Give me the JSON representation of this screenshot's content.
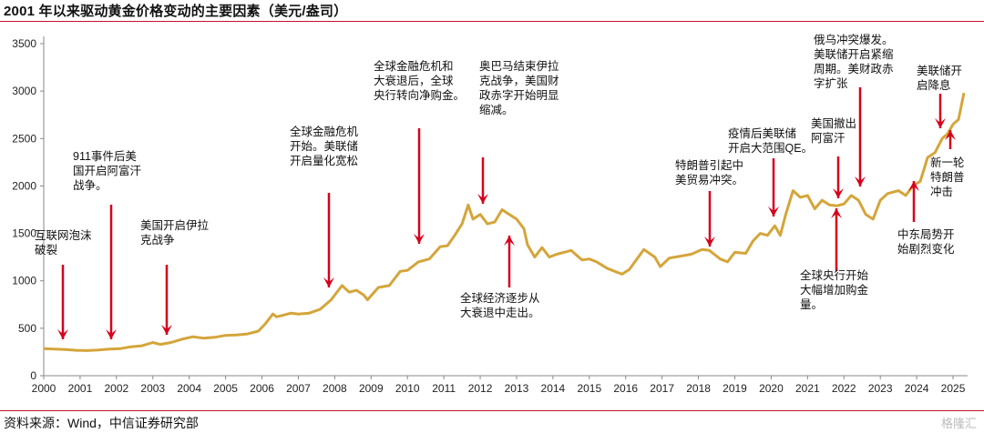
{
  "header": {
    "title": "2001 年以来驱动黄金价格变动的主要因素（美元/盎司）"
  },
  "footer": {
    "source": "资料来源：Wind，中信证券研究部",
    "watermark": "格隆汇"
  },
  "colors": {
    "line": "#d4a53a",
    "arrow": "#d6001c",
    "accent": "#c8102e",
    "axis": "#444444"
  },
  "chart_data": {
    "type": "line",
    "title": "2001 年以来驱动黄金价格变动的主要因素（美元/盎司）",
    "xlabel": "",
    "ylabel": "",
    "xlim": [
      2000,
      2025.4
    ],
    "ylim": [
      0,
      3500
    ],
    "grid": false,
    "x_ticks": [
      "2000",
      "2001",
      "2002",
      "2003",
      "2004",
      "2005",
      "2006",
      "2007",
      "2008",
      "2009",
      "2010",
      "2011",
      "2012",
      "2013",
      "2014",
      "2015",
      "2016",
      "2017",
      "2018",
      "2019",
      "2020",
      "2021",
      "2022",
      "2023",
      "2024",
      "2025"
    ],
    "y_ticks": [
      0,
      500,
      1000,
      1500,
      2000,
      2500,
      3000,
      3500
    ],
    "series": [
      {
        "x": [
          2000.0,
          2000.3,
          2000.6,
          2000.9,
          2001.2,
          2001.5,
          2001.8,
          2002.1,
          2002.4,
          2002.7,
          2003.0,
          2003.2,
          2003.5,
          2003.8,
          2004.1,
          2004.4,
          2004.7,
          2005.0,
          2005.3,
          2005.6,
          2005.9,
          2006.1,
          2006.3,
          2006.4,
          2006.6,
          2006.8,
          2007.0,
          2007.3,
          2007.6,
          2007.9,
          2008.1,
          2008.2,
          2008.4,
          2008.6,
          2008.8,
          2008.9,
          2009.2,
          2009.5,
          2009.8,
          2010.0,
          2010.3,
          2010.6,
          2010.9,
          2011.1,
          2011.3,
          2011.5,
          2011.67,
          2011.8,
          2012.0,
          2012.2,
          2012.4,
          2012.6,
          2012.8,
          2013.0,
          2013.2,
          2013.3,
          2013.5,
          2013.7,
          2013.9,
          2014.1,
          2014.3,
          2014.5,
          2014.8,
          2015.0,
          2015.2,
          2015.5,
          2015.9,
          2016.1,
          2016.5,
          2016.8,
          2016.95,
          2017.2,
          2017.5,
          2017.8,
          2018.1,
          2018.3,
          2018.6,
          2018.8,
          2019.0,
          2019.3,
          2019.5,
          2019.7,
          2019.9,
          2020.1,
          2020.25,
          2020.4,
          2020.6,
          2020.8,
          2021.0,
          2021.2,
          2021.4,
          2021.6,
          2021.8,
          2022.0,
          2022.2,
          2022.4,
          2022.6,
          2022.8,
          2023.0,
          2023.2,
          2023.5,
          2023.7,
          2023.9,
          2024.1,
          2024.3,
          2024.5,
          2024.7,
          2024.85,
          2025.0,
          2025.15,
          2025.3
        ],
        "y": [
          285,
          280,
          275,
          268,
          265,
          270,
          280,
          285,
          305,
          315,
          350,
          330,
          350,
          385,
          410,
          395,
          405,
          425,
          430,
          440,
          470,
          550,
          650,
          620,
          640,
          660,
          650,
          660,
          700,
          800,
          900,
          950,
          880,
          900,
          850,
          800,
          930,
          950,
          1100,
          1110,
          1200,
          1230,
          1360,
          1370,
          1480,
          1600,
          1800,
          1650,
          1700,
          1600,
          1620,
          1750,
          1700,
          1650,
          1550,
          1380,
          1250,
          1350,
          1250,
          1280,
          1300,
          1320,
          1220,
          1230,
          1200,
          1130,
          1070,
          1120,
          1330,
          1250,
          1150,
          1240,
          1260,
          1280,
          1330,
          1320,
          1230,
          1200,
          1300,
          1290,
          1420,
          1500,
          1480,
          1580,
          1480,
          1700,
          1950,
          1880,
          1900,
          1760,
          1850,
          1800,
          1790,
          1810,
          1900,
          1850,
          1700,
          1650,
          1850,
          1920,
          1950,
          1900,
          2000,
          2050,
          2300,
          2350,
          2500,
          2550,
          2650,
          2700,
          2980
        ]
      }
    ],
    "annotations": [
      {
        "text": [
          "互联网泡沫",
          "破裂"
        ],
        "x": 2000.3,
        "target_y": 290
      },
      {
        "text": [
          "911事件后美",
          "国开启阿富汗",
          "战争。"
        ],
        "x": 2001.67,
        "target_y": 290
      },
      {
        "text": [
          "美国开启伊拉",
          "克战争"
        ],
        "x": 2003.2,
        "target_y": 345
      },
      {
        "text": [
          "全球金融危机",
          "开始。美联储",
          "开启量化宽松"
        ],
        "x": 2007.67,
        "target_y": 680
      },
      {
        "text": [
          "全球金融危机和",
          "大衰退后，全球",
          "央行转向净购金。"
        ],
        "x": 2010.2,
        "target_y": 1190
      },
      {
        "text": [
          "奥巴马结束伊拉",
          "克战争，美国财",
          "政赤字开始明显",
          "缩减。"
        ],
        "x": 2011.9,
        "target_y": 1760
      },
      {
        "text": [
          "全球经济逐步从",
          "大衰退中走出。"
        ],
        "x": 2012.6,
        "target_y": 1640
      },
      {
        "text": [
          "特朗普引起中",
          "美贸易冲突。"
        ],
        "x": 2018.2,
        "target_y": 1330
      },
      {
        "text": [
          "疫情后美联储",
          "开启大范围QE。"
        ],
        "x": 2020.0,
        "target_y": 1600
      },
      {
        "text": [
          "美国撤出",
          "阿富汗"
        ],
        "x": 2021.7,
        "target_y": 1790
      },
      {
        "text": [
          "全球央行开始",
          "大幅增加购金",
          "量。"
        ],
        "x": 2021.8,
        "target_y": 1790
      },
      {
        "text": [
          "俄乌冲突爆发。",
          "美联储开启紧缩",
          "周期。美财政赤",
          "字扩张"
        ],
        "x": 2022.5,
        "target_y": 1950
      },
      {
        "text": [
          "美联储开",
          "启降息"
        ],
        "x": 2024.7,
        "target_y": 2580
      },
      {
        "text": [
          "新一轮",
          "特朗普",
          "冲击"
        ],
        "x": 2024.85,
        "target_y": 2680
      },
      {
        "text": [
          "中东局势开",
          "始剧烈变化"
        ],
        "x": 2024.05,
        "target_y": 2250
      }
    ]
  }
}
